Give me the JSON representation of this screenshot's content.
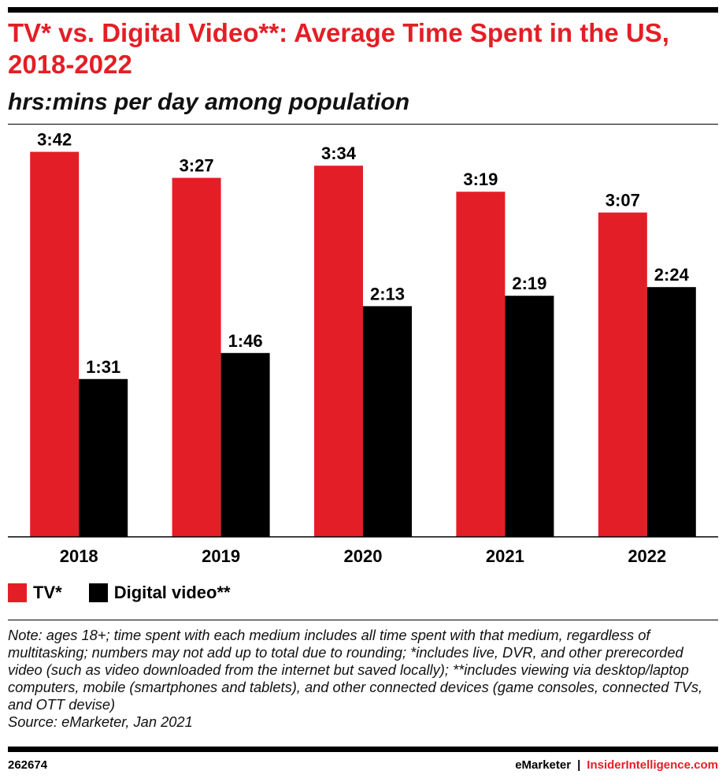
{
  "header": {
    "title": "TV* vs. Digital Video**: Average Time Spent in the US, 2018-2022",
    "subtitle": "hrs:mins per day among population"
  },
  "colors": {
    "tv": "#e41e26",
    "digital_video": "#000000",
    "accent": "#e41e26"
  },
  "chart_data": {
    "type": "bar",
    "categories": [
      "2018",
      "2019",
      "2020",
      "2021",
      "2022"
    ],
    "series": [
      {
        "name": "TV*",
        "values": [
          222,
          207,
          214,
          199,
          187
        ],
        "labels": [
          "3:42",
          "3:27",
          "3:34",
          "3:19",
          "3:07"
        ]
      },
      {
        "name": "Digital video**",
        "values": [
          91,
          106,
          133,
          139,
          144
        ],
        "labels": [
          "1:31",
          "1:46",
          "2:13",
          "2:19",
          "2:24"
        ]
      }
    ],
    "ylim": [
      0,
      230
    ],
    "grid": false,
    "legend_position": "bottom-left"
  },
  "note": {
    "text": "Note: ages 18+; time spent with each medium includes all time spent with that medium, regardless of multitasking; numbers may not add up to total due to rounding; *includes live, DVR, and other prerecorded video (such as video downloaded from the internet but saved locally); **includes viewing via desktop/laptop computers, mobile (smartphones and tablets), and other connected devices (game consoles, connected TVs, and OTT devise)",
    "source": "Source: eMarketer, Jan 2021"
  },
  "footer": {
    "chart_id": "262674",
    "brand_left": "eMarketer",
    "separator": "|",
    "brand_right": "InsiderIntelligence.com"
  }
}
